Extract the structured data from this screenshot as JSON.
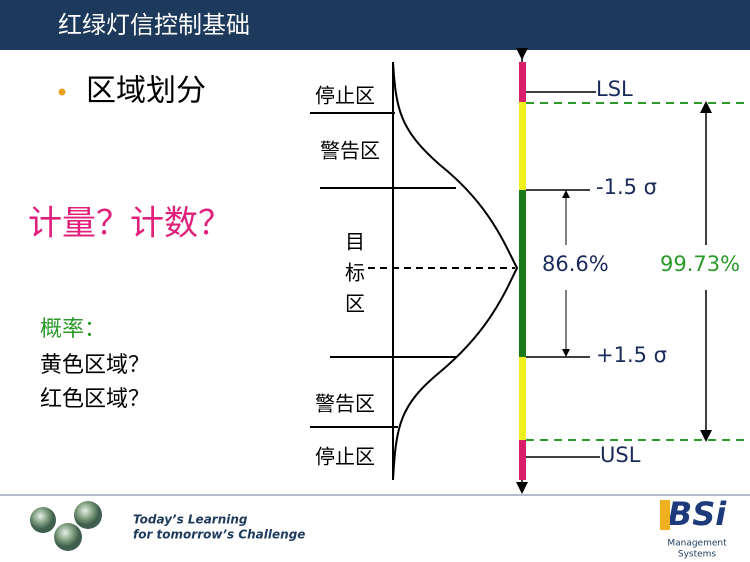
{
  "header": {
    "title": "红绿灯信控制基础"
  },
  "left": {
    "bullet": "区域划分",
    "question": "计量？计数？",
    "probability": {
      "title": "概率：",
      "lines": [
        "黄色区域？",
        "红色区域？"
      ]
    }
  },
  "diagram": {
    "zones": {
      "stop_top": "停止区",
      "warn_top": "警告区",
      "target": [
        "目",
        "标",
        "区"
      ],
      "warn_bottom": "警告区",
      "stop_bottom": "停止区"
    },
    "limits": {
      "lsl": "LSL",
      "minus_sigma": "-1.5 σ",
      "inner_pct": "86.6%",
      "outer_pct": "99.73%",
      "plus_sigma": "+1.5 σ",
      "usl": "USL"
    }
  },
  "footer": {
    "tagline": [
      "Today’s Learning",
      "for tomorrow’s Challenge"
    ],
    "logo": "BSi",
    "logo_sub": [
      "Management",
      "Systems"
    ]
  }
}
